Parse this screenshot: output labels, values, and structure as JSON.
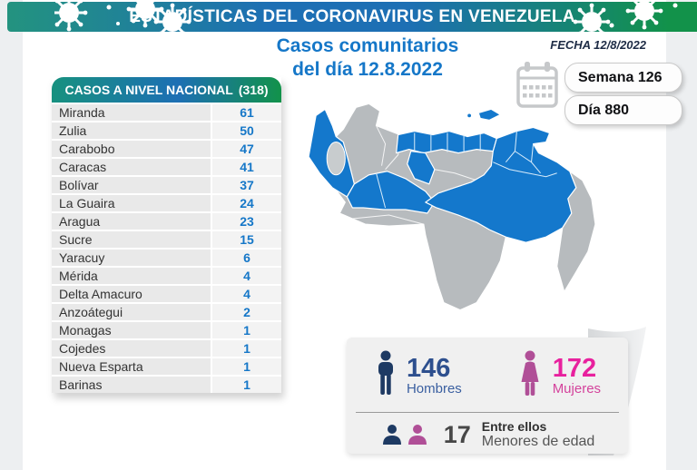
{
  "header": {
    "title": "ESTADÍSTICAS DEL CORONAVIRUS EN VENEZUELA"
  },
  "date_label": "FECHA 12/8/2022",
  "subtitle": {
    "line1": "Casos comunitarios",
    "line2": "del día 12.8.2022"
  },
  "badges": {
    "week": "Semana 126",
    "day": "Día 880"
  },
  "table": {
    "header": "CASOS A NIVEL NACIONAL",
    "total": "(318)",
    "rows": [
      {
        "state": "Miranda",
        "cases": "61"
      },
      {
        "state": "Zulia",
        "cases": "50"
      },
      {
        "state": "Carabobo",
        "cases": "47"
      },
      {
        "state": "Caracas",
        "cases": "41"
      },
      {
        "state": "Bolívar",
        "cases": "37"
      },
      {
        "state": "La Guaira",
        "cases": "24"
      },
      {
        "state": "Aragua",
        "cases": "23"
      },
      {
        "state": "Sucre",
        "cases": "15"
      },
      {
        "state": "Yaracuy",
        "cases": "6"
      },
      {
        "state": "Mérida",
        "cases": "4"
      },
      {
        "state": "Delta Amacuro",
        "cases": "4"
      },
      {
        "state": "Anzoátegui",
        "cases": "2"
      },
      {
        "state": "Monagas",
        "cases": "1"
      },
      {
        "state": "Cojedes",
        "cases": "1"
      },
      {
        "state": "Nueva Esparta",
        "cases": "1"
      },
      {
        "state": "Barinas",
        "cases": "1"
      }
    ]
  },
  "stats": {
    "men": {
      "value": "146",
      "label": "Hombres"
    },
    "women": {
      "value": "172",
      "label": "Mujeres"
    },
    "minors": {
      "value": "17",
      "line1": "Entre ellos",
      "line2": "Menores de edad"
    }
  },
  "map": {
    "highlight_color": "#1478cc",
    "base_color": "#b7bbbe",
    "lake_color": "#c8ccce"
  },
  "colors": {
    "band_teal": "#23937f",
    "band_blue": "#1d6fb4",
    "band_green": "#12924a",
    "title_blue": "#1577c8",
    "men_navy": "#1e3a63",
    "women_magenta": "#b04f97",
    "men_number": "#2d4f8e",
    "women_number": "#e8219e"
  },
  "chart_data": {
    "type": "table",
    "title": "CASOS A NIVEL NACIONAL (318)",
    "categories": [
      "Miranda",
      "Zulia",
      "Carabobo",
      "Caracas",
      "Bolívar",
      "La Guaira",
      "Aragua",
      "Sucre",
      "Yaracuy",
      "Mérida",
      "Delta Amacuro",
      "Anzoátegui",
      "Monagas",
      "Cojedes",
      "Nueva Esparta",
      "Barinas"
    ],
    "values": [
      61,
      50,
      47,
      41,
      37,
      24,
      23,
      15,
      6,
      4,
      4,
      2,
      1,
      1,
      1,
      1
    ],
    "total": 318,
    "men": 146,
    "women": 172,
    "minors": 17
  }
}
